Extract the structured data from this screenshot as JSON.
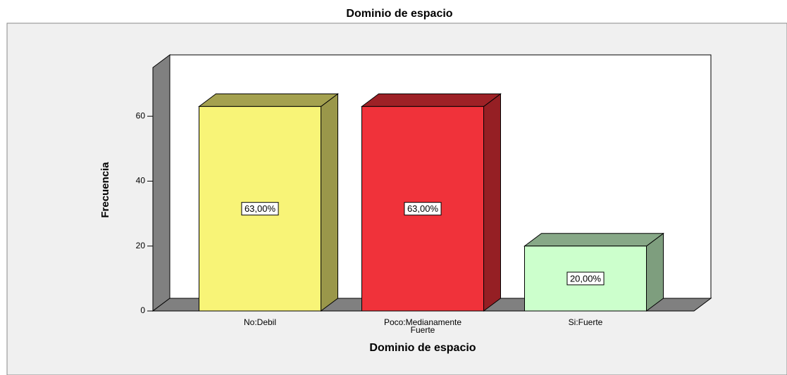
{
  "chart_data": {
    "type": "bar3d",
    "title": "Dominio de espacio",
    "x_label": "Dominio de espacio",
    "y_label": "Frecuencia",
    "categories": [
      "No:Debil",
      "Poco:Medianamente Fuerte",
      "Si:Fuerte"
    ],
    "values": [
      63,
      63,
      20
    ],
    "value_labels": [
      "63,00%",
      "63,00%",
      "20,00%"
    ],
    "colors": [
      "#f8f477",
      "#f0323a",
      "#ccffcc"
    ],
    "ylim": [
      0,
      75
    ],
    "yticks": [
      0,
      20,
      40,
      60
    ]
  }
}
